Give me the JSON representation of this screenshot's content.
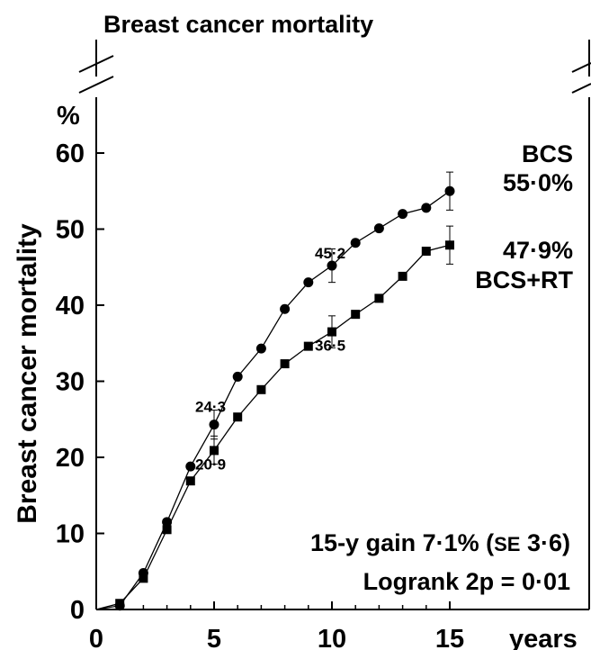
{
  "chart_data": {
    "type": "line",
    "title": "Breast cancer mortality",
    "ylabel": "Breast cancer mortality",
    "y_unit": "%",
    "x_unit": "years",
    "xlim": [
      0,
      15
    ],
    "ylim": [
      0,
      60
    ],
    "x_ticks": [
      "0",
      "5",
      "10",
      "15"
    ],
    "y_ticks": [
      "0",
      "10",
      "20",
      "30",
      "40",
      "50",
      "60"
    ],
    "grid": false,
    "axis_break": true,
    "series": [
      {
        "name": "BCS",
        "marker": "circle",
        "end_label": "55·0%",
        "x": [
          1,
          2,
          3,
          4,
          5,
          6,
          7,
          8,
          9,
          10,
          11,
          12,
          13,
          14,
          15
        ],
        "y": [
          0.5,
          4.8,
          11.5,
          18.8,
          24.3,
          30.6,
          34.3,
          39.5,
          43.0,
          45.2,
          48.2,
          50.1,
          52.0,
          52.8,
          55.0
        ],
        "error_bars": [
          {
            "x": 5,
            "low": 22.4,
            "high": 26.2
          },
          {
            "x": 10,
            "low": 43.0,
            "high": 47.4
          },
          {
            "x": 15,
            "low": 52.5,
            "high": 57.5
          }
        ]
      },
      {
        "name": "BCS+RT",
        "marker": "square",
        "end_label": "47·9%",
        "x": [
          1,
          2,
          3,
          4,
          5,
          6,
          7,
          8,
          9,
          10,
          11,
          12,
          13,
          14,
          15
        ],
        "y": [
          0.8,
          4.1,
          10.5,
          16.9,
          20.9,
          25.3,
          28.9,
          32.3,
          34.6,
          36.5,
          38.8,
          40.9,
          43.8,
          47.1,
          47.9
        ],
        "error_bars": [
          {
            "x": 5,
            "low": 19.1,
            "high": 22.8
          },
          {
            "x": 10,
            "low": 34.4,
            "high": 38.6
          },
          {
            "x": 15,
            "low": 45.4,
            "high": 50.4
          }
        ]
      }
    ],
    "point_labels": [
      {
        "text": "24·3",
        "x": 5,
        "y": 24.3,
        "series": "BCS"
      },
      {
        "text": "45·2",
        "x": 10,
        "y": 45.2,
        "series": "BCS"
      },
      {
        "text": "20·9",
        "x": 5,
        "y": 20.9,
        "series": "BCS+RT"
      },
      {
        "text": "36·5",
        "x": 10,
        "y": 36.5,
        "series": "BCS+RT"
      }
    ],
    "annotations": {
      "gain_main": "15-y gain 7·1% (",
      "gain_se": "SE",
      "gain_tail": " 3·6)",
      "logrank": "Logrank 2p = 0·01"
    }
  }
}
